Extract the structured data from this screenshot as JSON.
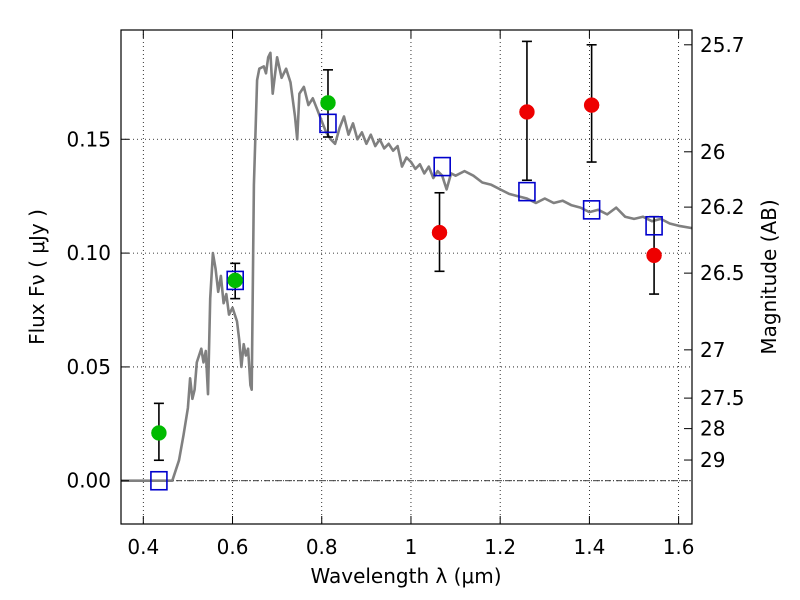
{
  "chart_data": {
    "type": "scatter",
    "xlabel": "Wavelength  λ (μm)",
    "ylabel": "Flux  Fν  ( μJy )",
    "y2label": "Magnitude (AB)",
    "xlim": [
      0.35,
      1.63
    ],
    "ylim": [
      -0.019,
      0.198
    ],
    "grid": true,
    "x_ticks": [
      {
        "value": 0.4,
        "label": "0.4"
      },
      {
        "value": 0.6,
        "label": "0.6"
      },
      {
        "value": 0.8,
        "label": "0.8"
      },
      {
        "value": 1.0,
        "label": "1"
      },
      {
        "value": 1.2,
        "label": "1.2"
      },
      {
        "value": 1.4,
        "label": "1.4"
      },
      {
        "value": 1.6,
        "label": "1.6"
      }
    ],
    "y_ticks": [
      {
        "value": 0.0,
        "label": "0.00"
      },
      {
        "value": 0.05,
        "label": "0.05"
      },
      {
        "value": 0.1,
        "label": "0.10"
      },
      {
        "value": 0.15,
        "label": "0.15"
      }
    ],
    "mag_ticks": [
      {
        "flux": 0.1915,
        "label": "25.7"
      },
      {
        "flux": 0.1445,
        "label": "26"
      },
      {
        "flux": 0.1202,
        "label": "26.2"
      },
      {
        "flux": 0.0912,
        "label": "26.5"
      },
      {
        "flux": 0.0575,
        "label": "27"
      },
      {
        "flux": 0.0363,
        "label": "27.5"
      },
      {
        "flux": 0.0229,
        "label": "28"
      },
      {
        "flux": 0.0091,
        "label": "29"
      }
    ],
    "model_spectrum": {
      "color": "#808080",
      "points": [
        [
          0.35,
          0.0
        ],
        [
          0.465,
          0.0
        ],
        [
          0.48,
          0.009
        ],
        [
          0.49,
          0.02
        ],
        [
          0.5,
          0.032
        ],
        [
          0.505,
          0.045
        ],
        [
          0.51,
          0.036
        ],
        [
          0.515,
          0.04
        ],
        [
          0.52,
          0.052
        ],
        [
          0.53,
          0.058
        ],
        [
          0.535,
          0.052
        ],
        [
          0.54,
          0.057
        ],
        [
          0.545,
          0.038
        ],
        [
          0.55,
          0.08
        ],
        [
          0.556,
          0.1
        ],
        [
          0.562,
          0.093
        ],
        [
          0.568,
          0.083
        ],
        [
          0.574,
          0.09
        ],
        [
          0.58,
          0.078
        ],
        [
          0.586,
          0.082
        ],
        [
          0.592,
          0.073
        ],
        [
          0.6,
          0.076
        ],
        [
          0.61,
          0.07
        ],
        [
          0.615,
          0.062
        ],
        [
          0.62,
          0.05
        ],
        [
          0.625,
          0.06
        ],
        [
          0.63,
          0.055
        ],
        [
          0.635,
          0.058
        ],
        [
          0.64,
          0.042
        ],
        [
          0.643,
          0.04
        ],
        [
          0.648,
          0.13
        ],
        [
          0.655,
          0.176
        ],
        [
          0.66,
          0.181
        ],
        [
          0.67,
          0.182
        ],
        [
          0.675,
          0.179
        ],
        [
          0.68,
          0.186
        ],
        [
          0.685,
          0.188
        ],
        [
          0.69,
          0.17
        ],
        [
          0.7,
          0.186
        ],
        [
          0.71,
          0.177
        ],
        [
          0.72,
          0.181
        ],
        [
          0.73,
          0.175
        ],
        [
          0.74,
          0.16
        ],
        [
          0.745,
          0.15
        ],
        [
          0.75,
          0.17
        ],
        [
          0.76,
          0.173
        ],
        [
          0.77,
          0.165
        ],
        [
          0.78,
          0.168
        ],
        [
          0.79,
          0.163
        ],
        [
          0.8,
          0.158
        ],
        [
          0.81,
          0.153
        ],
        [
          0.82,
          0.15
        ],
        [
          0.83,
          0.148
        ],
        [
          0.84,
          0.155
        ],
        [
          0.85,
          0.16
        ],
        [
          0.86,
          0.152
        ],
        [
          0.87,
          0.157
        ],
        [
          0.88,
          0.15
        ],
        [
          0.89,
          0.153
        ],
        [
          0.9,
          0.148
        ],
        [
          0.91,
          0.152
        ],
        [
          0.92,
          0.147
        ],
        [
          0.93,
          0.15
        ],
        [
          0.94,
          0.146
        ],
        [
          0.95,
          0.148
        ],
        [
          0.96,
          0.145
        ],
        [
          0.97,
          0.147
        ],
        [
          0.98,
          0.138
        ],
        [
          0.99,
          0.142
        ],
        [
          1.0,
          0.14
        ],
        [
          1.01,
          0.137
        ],
        [
          1.02,
          0.139
        ],
        [
          1.03,
          0.135
        ],
        [
          1.04,
          0.138
        ],
        [
          1.05,
          0.133
        ],
        [
          1.06,
          0.136
        ],
        [
          1.07,
          0.134
        ],
        [
          1.08,
          0.128
        ],
        [
          1.09,
          0.135
        ],
        [
          1.1,
          0.134
        ],
        [
          1.12,
          0.136
        ],
        [
          1.14,
          0.134
        ],
        [
          1.16,
          0.131
        ],
        [
          1.18,
          0.13
        ],
        [
          1.2,
          0.128
        ],
        [
          1.22,
          0.126
        ],
        [
          1.24,
          0.125
        ],
        [
          1.26,
          0.124
        ],
        [
          1.28,
          0.122
        ],
        [
          1.3,
          0.124
        ],
        [
          1.32,
          0.122
        ],
        [
          1.34,
          0.123
        ],
        [
          1.36,
          0.121
        ],
        [
          1.38,
          0.12
        ],
        [
          1.4,
          0.118
        ],
        [
          1.42,
          0.119
        ],
        [
          1.44,
          0.117
        ],
        [
          1.46,
          0.12
        ],
        [
          1.48,
          0.116
        ],
        [
          1.5,
          0.115
        ],
        [
          1.52,
          0.116
        ],
        [
          1.54,
          0.114
        ],
        [
          1.56,
          0.115
        ],
        [
          1.58,
          0.113
        ],
        [
          1.6,
          0.112
        ],
        [
          1.63,
          0.111
        ]
      ]
    },
    "synthetic_photometry": {
      "marker": "open-square",
      "color": "#0000cc",
      "points": [
        {
          "x": 0.435,
          "y": 0.0
        },
        {
          "x": 0.606,
          "y": 0.088
        },
        {
          "x": 0.814,
          "y": 0.157
        },
        {
          "x": 1.07,
          "y": 0.138
        },
        {
          "x": 1.26,
          "y": 0.127
        },
        {
          "x": 1.405,
          "y": 0.119
        },
        {
          "x": 1.545,
          "y": 0.112
        }
      ]
    },
    "observed_detections": {
      "marker": "filled-circle",
      "color": "#00bb00",
      "points": [
        {
          "x": 0.435,
          "y": 0.021,
          "yerr_low": 0.012,
          "yerr_high": 0.013
        },
        {
          "x": 0.606,
          "y": 0.088,
          "yerr_low": 0.008,
          "yerr_high": 0.0075
        },
        {
          "x": 0.814,
          "y": 0.166,
          "yerr_low": 0.015,
          "yerr_high": 0.0145
        }
      ]
    },
    "observed_other": {
      "marker": "filled-circle",
      "color": "#ee0000",
      "points": [
        {
          "x": 1.064,
          "y": 0.109,
          "yerr_low": 0.017,
          "yerr_high": 0.0175
        },
        {
          "x": 1.26,
          "y": 0.162,
          "yerr_low": 0.03,
          "yerr_high": 0.031
        },
        {
          "x": 1.405,
          "y": 0.165,
          "yerr_low": 0.025,
          "yerr_high": 0.0265
        },
        {
          "x": 1.545,
          "y": 0.099,
          "yerr_low": 0.017,
          "yerr_high": 0.017
        }
      ]
    },
    "zero_line": {
      "value": 0.0,
      "color": "#000000",
      "style": "dashdot"
    },
    "errorbar_color": "#000000"
  }
}
